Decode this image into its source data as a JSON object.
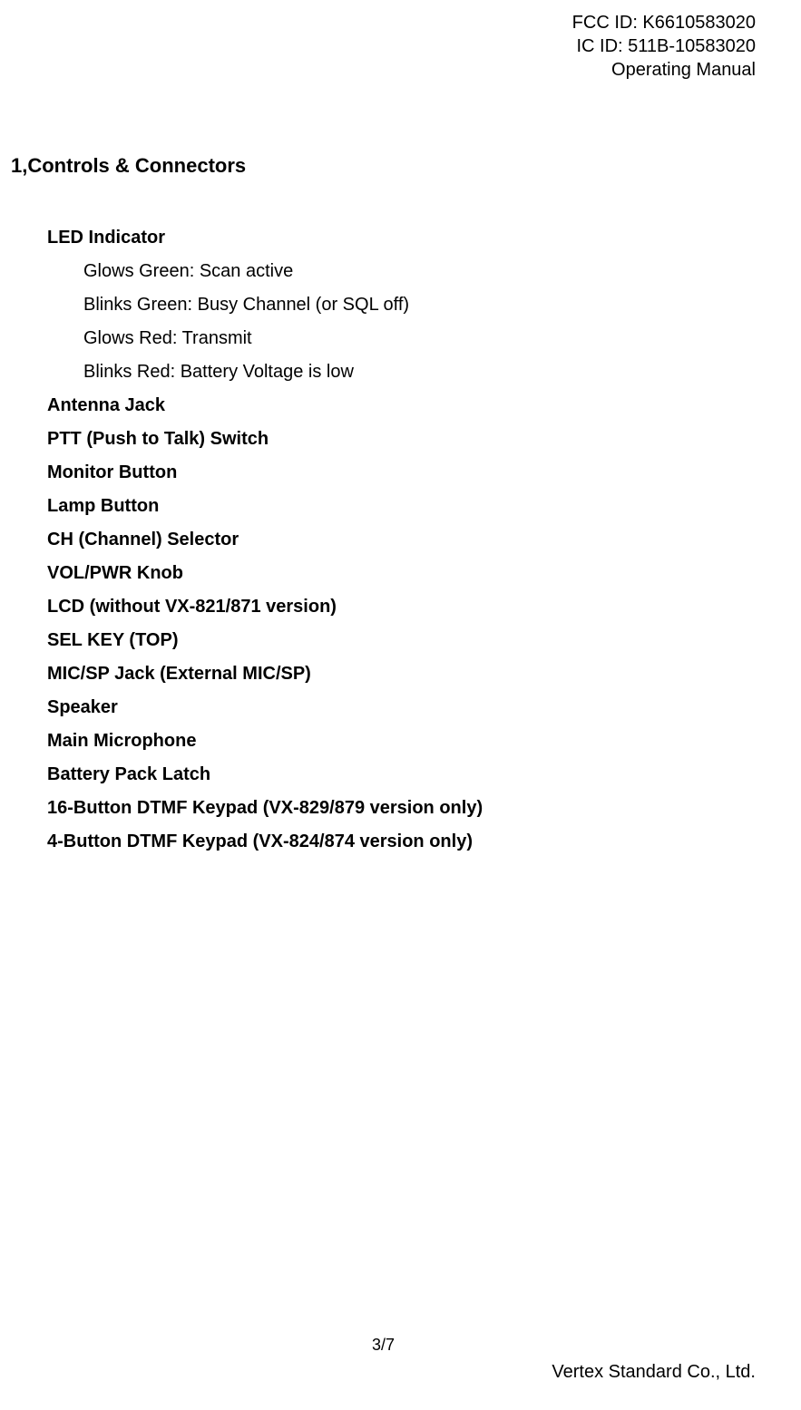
{
  "header": {
    "fcc": "FCC ID: K6610583020",
    "ic": "IC ID: 511B-10583020",
    "manual": "Operating Manual"
  },
  "section_title": "1,Controls & Connectors",
  "controls": [
    {
      "label": "LED Indicator",
      "sub": [
        "Glows Green: Scan active",
        "Blinks Green: Busy Channel (or SQL off)",
        "Glows Red: Transmit",
        "Blinks Red: Battery Voltage is low"
      ]
    },
    {
      "label": "Antenna Jack"
    },
    {
      "label": "PTT (Push to Talk) Switch"
    },
    {
      "label": "Monitor Button"
    },
    {
      "label": "Lamp Button"
    },
    {
      "label": "CH (Channel) Selector"
    },
    {
      "label": "VOL/PWR Knob"
    },
    {
      "label": "LCD (without VX-821/871 version)"
    },
    {
      "label": "SEL KEY (TOP)"
    },
    {
      "label": "MIC/SP Jack (External MIC/SP)"
    },
    {
      "label": "Speaker"
    },
    {
      "label": "Main Microphone"
    },
    {
      "label": "Battery Pack Latch"
    },
    {
      "label": "16-Button DTMF Keypad (VX-829/879 version only)"
    },
    {
      "label": "4-Button DTMF Keypad (VX-824/874 version only)"
    }
  ],
  "footer": {
    "page": "3/7",
    "company": "Vertex Standard Co., Ltd."
  },
  "styles": {
    "background_color": "#ffffff",
    "text_color": "#000000",
    "font_family": "Arial",
    "title_fontsize": 22,
    "body_fontsize": 20,
    "footer_fontsize": 18
  }
}
